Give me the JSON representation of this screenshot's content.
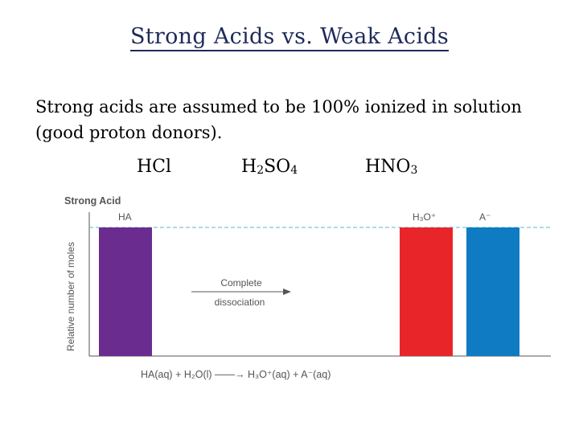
{
  "title": "Strong Acids vs. Weak Acids",
  "body_text": "Strong acids are assumed to be 100% ionized in solution (good proton donors).",
  "formulas": [
    {
      "base": "HCl",
      "parts": []
    },
    {
      "parts": [
        {
          "t": "H"
        },
        {
          "s": "2"
        },
        {
          "t": "SO"
        },
        {
          "s": "4"
        }
      ]
    },
    {
      "parts": [
        {
          "t": "HNO"
        },
        {
          "s": "3"
        }
      ]
    }
  ],
  "formula_labels": {
    "hcl": "HCl"
  },
  "chart_data": {
    "type": "bar",
    "title": "Strong Acid",
    "ylabel": "Relative number of moles",
    "categories": [
      "HA",
      "H3O+",
      "A−"
    ],
    "category_labels": [
      "HA",
      "H₃O⁺",
      "A⁻"
    ],
    "values": [
      1.0,
      1.0,
      1.0
    ],
    "ylim": [
      0,
      1.2
    ],
    "colors": [
      "#6a2d8f",
      "#e8262a",
      "#0f7bc2"
    ],
    "reference_line": {
      "value": 1.0,
      "style": "dashed",
      "color": "#62b3d6"
    },
    "annotation": {
      "line1": "Complete",
      "line2": "dissociation",
      "arrow": "right"
    },
    "equation": "HA(aq) + H₂O(l) ——→ H₃O⁺(aq) + A⁻(aq)",
    "grid": false
  }
}
